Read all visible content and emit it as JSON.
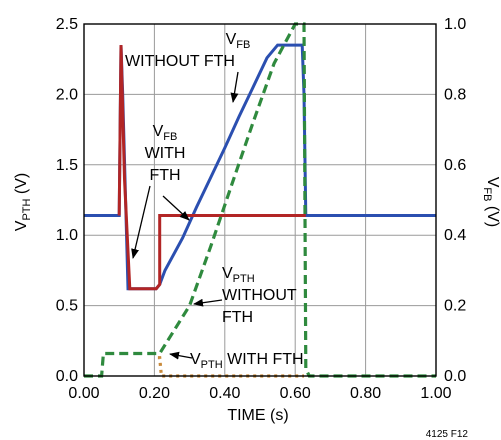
{
  "chart_data": {
    "type": "line",
    "xlabel": "TIME (s)",
    "ylabel_left": {
      "main": "V",
      "sub": "PTH",
      "unit": " (V)"
    },
    "ylabel_right": {
      "main": "V",
      "sub": "FB",
      "unit": " (V)"
    },
    "xlim": [
      0,
      1
    ],
    "ylim_left": [
      0,
      2.5
    ],
    "ylim_right": [
      0,
      1.0
    ],
    "x_ticks": [
      "0.00",
      "0.20",
      "0.40",
      "0.60",
      "0.80",
      "1.00"
    ],
    "y_ticks_left": [
      "0.0",
      "0.5",
      "1.0",
      "1.5",
      "2.0",
      "2.5"
    ],
    "y_ticks_right": [
      "0.0",
      "0.2",
      "0.4",
      "0.6",
      "0.8",
      "1.0"
    ],
    "grid": true,
    "legend": "none",
    "figure_id": "4125 F12",
    "colors": {
      "blue": "#2b4fb0",
      "red": "#b22525",
      "green": "#2f8a3e",
      "orange": "#c98a3a"
    },
    "series": [
      {
        "axis": "left",
        "style": "solid",
        "color": "#2b4fb0",
        "x": [
          0,
          0.1,
          0.105,
          0.11,
          0.125,
          0.205,
          0.215,
          0.23,
          0.28,
          0.32,
          0.36,
          0.4,
          0.44,
          0.48,
          0.52,
          0.55,
          0.585,
          0.62,
          0.625,
          0.63,
          0.65,
          1.0
        ],
        "y": [
          1.14,
          1.14,
          2.35,
          2.0,
          0.62,
          0.62,
          0.65,
          0.75,
          0.98,
          1.2,
          1.41,
          1.62,
          1.84,
          2.05,
          2.26,
          2.35,
          2.35,
          2.35,
          2.0,
          1.14,
          1.14,
          1.14
        ]
      },
      {
        "axis": "left",
        "style": "solid",
        "color": "#b22525",
        "x": [
          0.1,
          0.105,
          0.115,
          0.13,
          0.205,
          0.215,
          0.215,
          0.62,
          0.625,
          0.63
        ],
        "y": [
          1.14,
          2.35,
          1.4,
          0.62,
          0.62,
          0.65,
          1.14,
          1.14,
          1.14,
          1.14
        ]
      },
      {
        "axis": "left",
        "style": "dashed",
        "color": "#2f8a3e",
        "x": [
          0,
          0.05,
          0.055,
          0.215,
          0.22,
          0.3,
          0.36,
          0.42,
          0.48,
          0.54,
          0.6,
          0.625,
          0.63,
          0.64,
          1.0
        ],
        "y": [
          0.0,
          0.0,
          0.16,
          0.16,
          0.18,
          0.5,
          0.92,
          1.36,
          1.8,
          2.22,
          2.5,
          2.5,
          0.05,
          0.0,
          0.0
        ]
      },
      {
        "axis": "left",
        "style": "dotted",
        "color": "#c98a3a",
        "x": [
          0.21,
          0.215,
          0.22,
          0.62,
          0.625
        ],
        "y": [
          0.13,
          0.13,
          0.0,
          0.0,
          0.0
        ]
      }
    ],
    "annotations": [
      {
        "lines": [
          {
            "main": "V",
            "sub": "FB"
          },
          {
            "main": "WITHOUT FTH"
          }
        ]
      },
      {
        "lines": [
          {
            "main": "V",
            "sub": "FB"
          },
          {
            "main": "WITH"
          },
          {
            "main": "FTH"
          }
        ]
      },
      {
        "lines": [
          {
            "main": "V",
            "sub": "PTH"
          },
          {
            "main": "WITHOUT"
          },
          {
            "main": "FTH"
          }
        ]
      },
      {
        "lines": [
          {
            "main": "V",
            "sub": "PTH",
            "tail": " WITH FTH"
          }
        ]
      }
    ]
  }
}
